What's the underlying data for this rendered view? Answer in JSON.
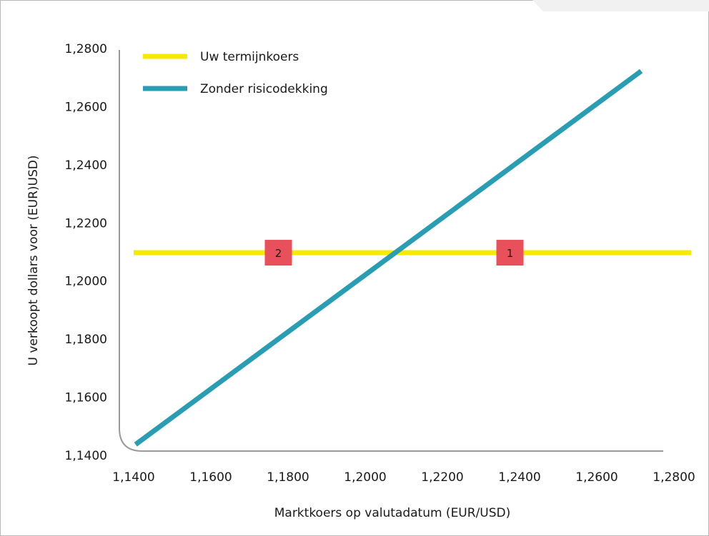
{
  "chart_data": {
    "type": "line",
    "xlabel": "Marktkoers op valutadatum (EUR/USD)",
    "ylabel": "U verkoopt dollars voor (EUR)USD)",
    "xlim": [
      1.14,
      1.28
    ],
    "ylim": [
      1.14,
      1.28
    ],
    "x_ticks": [
      "1,1400",
      "1,1600",
      "1,1800",
      "1,2000",
      "1,2200",
      "1,2400",
      "1,2600",
      "1,2800"
    ],
    "y_ticks": [
      "1,1400",
      "1,1600",
      "1,1800",
      "1,2000",
      "1,2200",
      "1,2400",
      "1,2600",
      "1,2800"
    ],
    "x_tick_values": [
      1.14,
      1.16,
      1.18,
      1.2,
      1.22,
      1.24,
      1.26,
      1.28
    ],
    "y_tick_values": [
      1.14,
      1.16,
      1.18,
      1.2,
      1.22,
      1.24,
      1.26,
      1.28
    ],
    "grid": false,
    "legend_position": "top-left",
    "series": [
      {
        "name": "Uw termijnkoers",
        "color": "#f5ea00",
        "x": [
          1.14,
          1.2845
        ],
        "y": [
          1.2095,
          1.2095
        ]
      },
      {
        "name": "Zonder risicodekking",
        "color": "#2a9db3",
        "x": [
          1.1405,
          1.2715
        ],
        "y": [
          1.1435,
          1.272
        ]
      }
    ],
    "annotations": [
      {
        "text": "2",
        "x": 1.1775,
        "y": 1.2095,
        "color": "#e8505b"
      },
      {
        "text": "1",
        "x": 1.2375,
        "y": 1.2095,
        "color": "#e8505b"
      }
    ]
  }
}
